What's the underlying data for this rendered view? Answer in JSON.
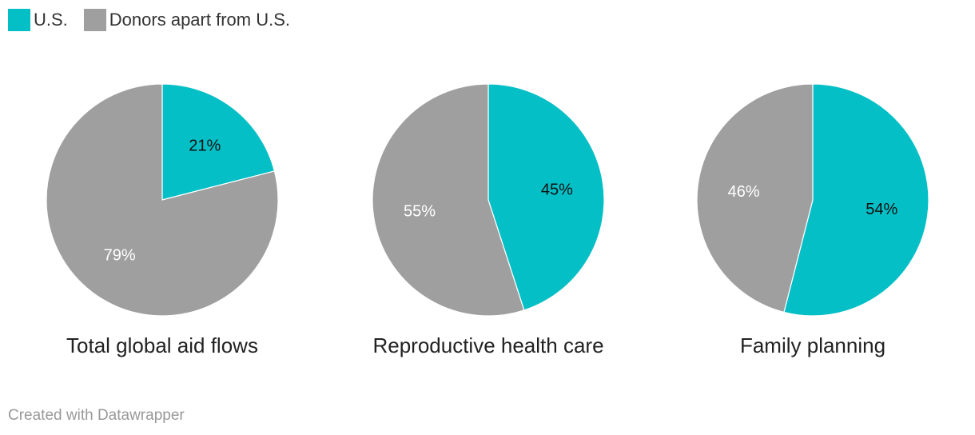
{
  "colors": {
    "us": "#04bfc6",
    "donors": "#a09f9f",
    "label_on_us": "#111111",
    "label_on_donors": "#ffffff"
  },
  "legend": [
    {
      "label": "U.S.",
      "key": "us"
    },
    {
      "label": "Donors apart from U.S.",
      "key": "donors"
    }
  ],
  "chart_data": {
    "type": "pie",
    "series_names": [
      "U.S.",
      "Donors apart from U.S."
    ],
    "charts": [
      {
        "title": "Total global aid flows",
        "values": [
          21,
          79
        ],
        "labels": [
          "21%",
          "79%"
        ]
      },
      {
        "title": "Reproductive health care",
        "values": [
          45,
          55
        ],
        "labels": [
          "45%",
          "55%"
        ]
      },
      {
        "title": "Family planning",
        "values": [
          54,
          46
        ],
        "labels": [
          "54%",
          "46%"
        ]
      }
    ]
  },
  "footer": {
    "credit": "Created with Datawrapper"
  }
}
